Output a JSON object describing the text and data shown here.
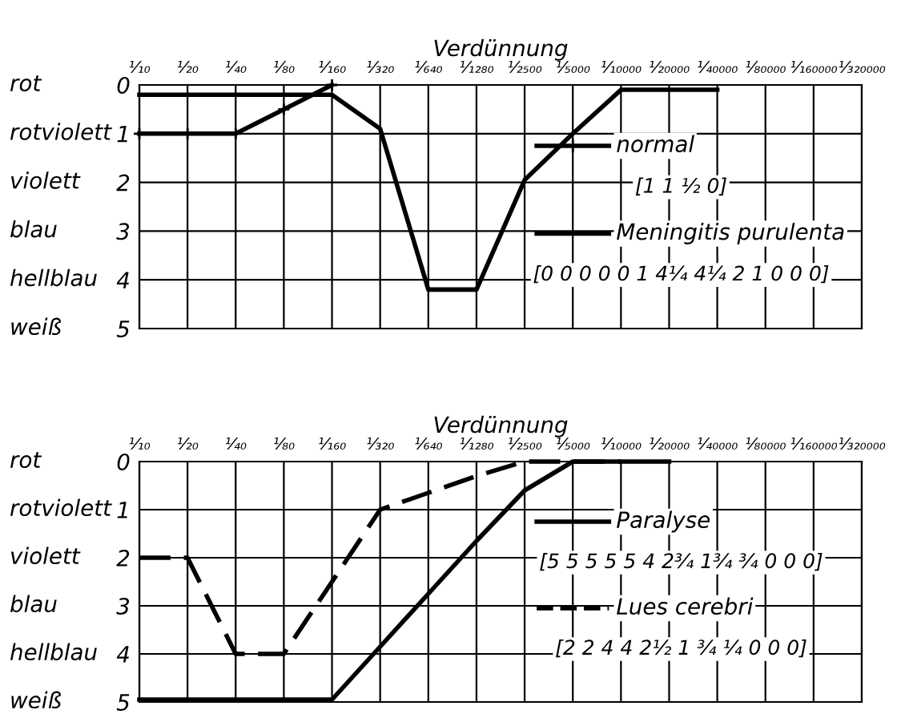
{
  "chart_data": [
    {
      "type": "line",
      "xlabel": "Verdünnung",
      "categories": [
        "¹⁄₁₀",
        "¹⁄₂₀",
        "¹⁄₄₀",
        "¹⁄₈₀",
        "¹⁄₁₆₀",
        "¹⁄₃₂₀",
        "¹⁄₆₄₀",
        "¹⁄₁₂₈₀",
        "¹⁄₂₅₀₀",
        "¹⁄₅₀₀₀",
        "¹⁄₁₀₀₀₀",
        "¹⁄₂₀₀₀₀",
        "¹⁄₄₀₀₀₀",
        "¹⁄₈₀₀₀₀",
        "¹⁄₁₆₀₀₀₀",
        "¹⁄₃₂₀₀₀₀"
      ],
      "ylim": [
        5,
        0
      ],
      "yticks": [
        0,
        1,
        2,
        3,
        4,
        5
      ],
      "grid": true,
      "legend": "right",
      "series": [
        {
          "name": "normal",
          "color": "#000000",
          "marker": "cross",
          "line_style": "solid",
          "values": [
            1,
            1,
            1,
            0.5,
            0,
            null,
            null,
            null,
            null,
            null,
            null,
            null,
            null,
            null,
            null,
            null
          ]
        },
        {
          "name": "Meningitis purulenta",
          "color": "#000000",
          "marker": "none",
          "line_style": "solid",
          "values": [
            0.2,
            0.2,
            0.2,
            0.2,
            0.2,
            0.9,
            4.2,
            4.2,
            1.95,
            1.0,
            0.1,
            0.1,
            0.1,
            null,
            null,
            null
          ]
        }
      ],
      "annotations": [
        "[1 1 ½ 0]",
        "[0 0 0 0 0 1 4¼ 4¼ 2 1 0 0 0]",
        "rot",
        "rotviolett",
        "violett",
        "blau",
        "hellblau",
        "weiß"
      ]
    },
    {
      "type": "line",
      "xlabel": "Verdünnung",
      "categories": [
        "¹⁄₁₀",
        "¹⁄₂₀",
        "¹⁄₄₀",
        "¹⁄₈₀",
        "¹⁄₁₆₀",
        "¹⁄₃₂₀",
        "¹⁄₆₄₀",
        "¹⁄₁₂₈₀",
        "¹⁄₂₅₀₀",
        "¹⁄₅₀₀₀",
        "¹⁄₁₀₀₀₀",
        "¹⁄₂₀₀₀₀",
        "¹⁄₄₀₀₀₀",
        "¹⁄₈₀₀₀₀",
        "¹⁄₁₆₀₀₀₀",
        "¹⁄₃₂₀₀₀₀"
      ],
      "ylim": [
        5,
        0
      ],
      "yticks": [
        0,
        1,
        2,
        3,
        4,
        5
      ],
      "grid": true,
      "legend": "right",
      "series": [
        {
          "name": "Paralyse",
          "color": "#000000",
          "marker": "none",
          "line_style": "solid",
          "values": [
            4.95,
            4.95,
            4.95,
            4.95,
            4.95,
            3.85,
            2.75,
            1.65,
            0.6,
            0,
            0,
            0,
            null,
            null,
            null,
            null
          ]
        },
        {
          "name": "Lues cerebri",
          "color": "#000000",
          "marker": "none",
          "line_style": "dashed",
          "values": [
            2,
            2,
            4,
            4,
            2.5,
            1,
            0.65,
            0.3,
            0,
            0,
            0,
            null,
            null,
            null,
            null,
            null
          ]
        }
      ],
      "annotations": [
        "[5 5 5 5 5 4 2¾ 1¾ ¾ 0 0 0]",
        "[2 2 4 4 2½ 1 ¾ ¼ 0 0 0]",
        "rot",
        "rotviolett",
        "violett",
        "blau",
        "hellblau",
        "weiß"
      ]
    }
  ]
}
